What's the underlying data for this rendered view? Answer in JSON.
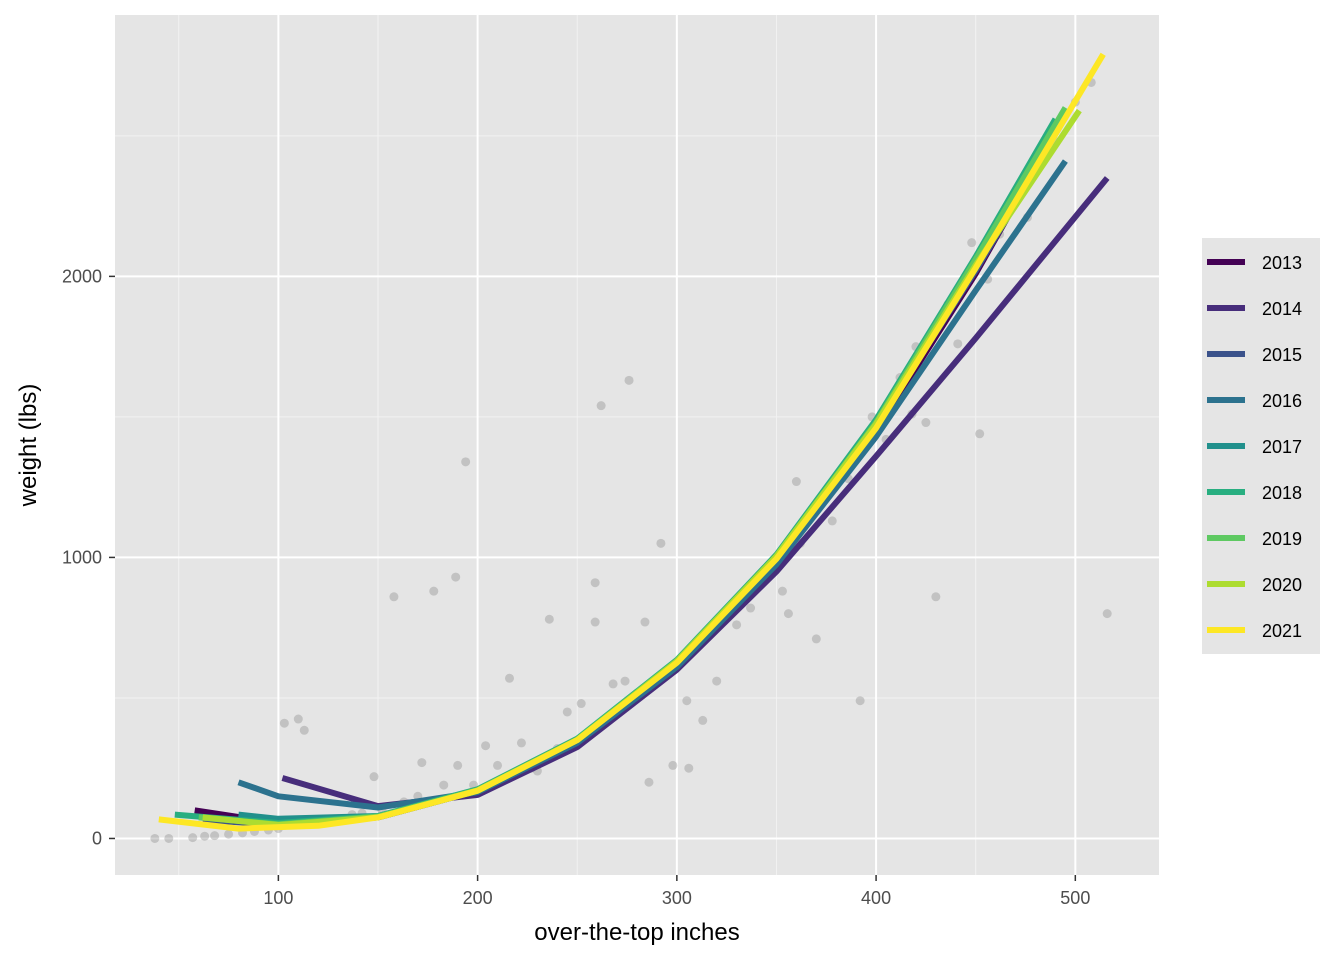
{
  "chart_data": {
    "type": "scatter",
    "title": "",
    "xlabel": "over-the-top inches",
    "ylabel": "weight (lbs)",
    "xlim": [
      18,
      542
    ],
    "ylim": [
      -130,
      2930
    ],
    "x_ticks": [
      100,
      200,
      300,
      400,
      500
    ],
    "y_ticks": [
      0,
      1000,
      2000
    ],
    "x_tick_labels": [
      "100",
      "200",
      "300",
      "400",
      "500"
    ],
    "y_tick_labels": [
      "0",
      "1000",
      "2000"
    ],
    "grid": true,
    "panel_background": "#e5e5e5",
    "point_color": "#808080",
    "legend_position": "right",
    "series": [
      {
        "name": "2013",
        "color": "#440154",
        "x": [
          58,
          100,
          150,
          200,
          250,
          300,
          350,
          400,
          450,
          470
        ],
        "y": [
          100,
          55,
          75,
          170,
          350,
          620,
          980,
          1450,
          2010,
          2260
        ]
      },
      {
        "name": "2014",
        "color": "#472D7B",
        "x": [
          102,
          150,
          200,
          250,
          300,
          350,
          400,
          450,
          516
        ],
        "y": [
          215,
          115,
          155,
          325,
          600,
          950,
          1360,
          1780,
          2350
        ]
      },
      {
        "name": "2015",
        "color": "#3B528B",
        "x": [
          62,
          100,
          150,
          200,
          250,
          300,
          350,
          400,
          450,
          485
        ],
        "y": [
          65,
          50,
          75,
          170,
          350,
          630,
          1000,
          1470,
          2020,
          2440
        ]
      },
      {
        "name": "2016",
        "color": "#2C728E",
        "x": [
          80,
          100,
          150,
          200,
          250,
          300,
          350,
          400,
          450,
          495
        ],
        "y": [
          200,
          150,
          110,
          165,
          340,
          610,
          975,
          1430,
          1950,
          2410
        ]
      },
      {
        "name": "2017",
        "color": "#21908C",
        "x": [
          80,
          100,
          150,
          200,
          250,
          300,
          350,
          400,
          450,
          490
        ],
        "y": [
          85,
          70,
          80,
          170,
          350,
          630,
          1000,
          1470,
          2060,
          2550
        ]
      },
      {
        "name": "2018",
        "color": "#28AE80",
        "x": [
          48,
          100,
          150,
          200,
          250,
          300,
          350,
          400,
          450,
          490
        ],
        "y": [
          85,
          55,
          80,
          175,
          355,
          635,
          1010,
          1490,
          2070,
          2560
        ]
      },
      {
        "name": "2019",
        "color": "#5EC962",
        "x": [
          60,
          100,
          150,
          200,
          250,
          300,
          350,
          400,
          450,
          495
        ],
        "y": [
          75,
          50,
          78,
          172,
          352,
          632,
          1005,
          1480,
          2060,
          2600
        ]
      },
      {
        "name": "2020",
        "color": "#ADDC30",
        "x": [
          62,
          100,
          150,
          200,
          250,
          300,
          350,
          400,
          450,
          502
        ],
        "y": [
          75,
          48,
          75,
          170,
          350,
          630,
          1005,
          1475,
          2040,
          2590
        ]
      },
      {
        "name": "2021",
        "color": "#FDE725",
        "x": [
          40,
          80,
          120,
          150,
          200,
          250,
          300,
          350,
          400,
          450,
          514
        ],
        "y": [
          68,
          35,
          45,
          75,
          170,
          350,
          625,
          995,
          1460,
          2030,
          2790
        ]
      }
    ],
    "points": [
      [
        38,
        0
      ],
      [
        45,
        0
      ],
      [
        57,
        3
      ],
      [
        63,
        8
      ],
      [
        68,
        10
      ],
      [
        75,
        15
      ],
      [
        82,
        20
      ],
      [
        88,
        25
      ],
      [
        95,
        30
      ],
      [
        100,
        35
      ],
      [
        103,
        410
      ],
      [
        110,
        425
      ],
      [
        113,
        385
      ],
      [
        118,
        55
      ],
      [
        125,
        60
      ],
      [
        130,
        70
      ],
      [
        137,
        85
      ],
      [
        142,
        90
      ],
      [
        148,
        220
      ],
      [
        152,
        100
      ],
      [
        158,
        860
      ],
      [
        163,
        130
      ],
      [
        170,
        150
      ],
      [
        172,
        270
      ],
      [
        178,
        880
      ],
      [
        183,
        190
      ],
      [
        189,
        930
      ],
      [
        190,
        260
      ],
      [
        194,
        1340
      ],
      [
        198,
        190
      ],
      [
        204,
        330
      ],
      [
        210,
        260
      ],
      [
        216,
        570
      ],
      [
        222,
        340
      ],
      [
        227,
        250
      ],
      [
        236,
        780
      ],
      [
        240,
        320
      ],
      [
        245,
        450
      ],
      [
        252,
        480
      ],
      [
        259,
        770
      ],
      [
        259,
        910
      ],
      [
        262,
        1540
      ],
      [
        268,
        550
      ],
      [
        274,
        560
      ],
      [
        284,
        770
      ],
      [
        286,
        200
      ],
      [
        292,
        1050
      ],
      [
        298,
        260
      ],
      [
        305,
        490
      ],
      [
        306,
        250
      ],
      [
        313,
        420
      ],
      [
        320,
        560
      ],
      [
        330,
        760
      ],
      [
        337,
        820
      ],
      [
        345,
        930
      ],
      [
        353,
        880
      ],
      [
        360,
        1270
      ],
      [
        362,
        1050
      ],
      [
        370,
        710
      ],
      [
        378,
        1130
      ],
      [
        386,
        1280
      ],
      [
        392,
        490
      ],
      [
        398,
        1500
      ],
      [
        405,
        1420
      ],
      [
        412,
        1640
      ],
      [
        420,
        1750
      ],
      [
        425,
        1480
      ],
      [
        430,
        860
      ],
      [
        436,
        1900
      ],
      [
        441,
        1760
      ],
      [
        448,
        2120
      ],
      [
        452,
        1440
      ],
      [
        456,
        1990
      ],
      [
        462,
        2150
      ],
      [
        470,
        2300
      ],
      [
        476,
        2210
      ],
      [
        483,
        2450
      ],
      [
        490,
        2480
      ],
      [
        500,
        2620
      ],
      [
        508,
        2690
      ],
      [
        516,
        800
      ],
      [
        230,
        240
      ],
      [
        276,
        1630
      ],
      [
        356,
        800
      ],
      [
        418,
        1510
      ]
    ]
  }
}
